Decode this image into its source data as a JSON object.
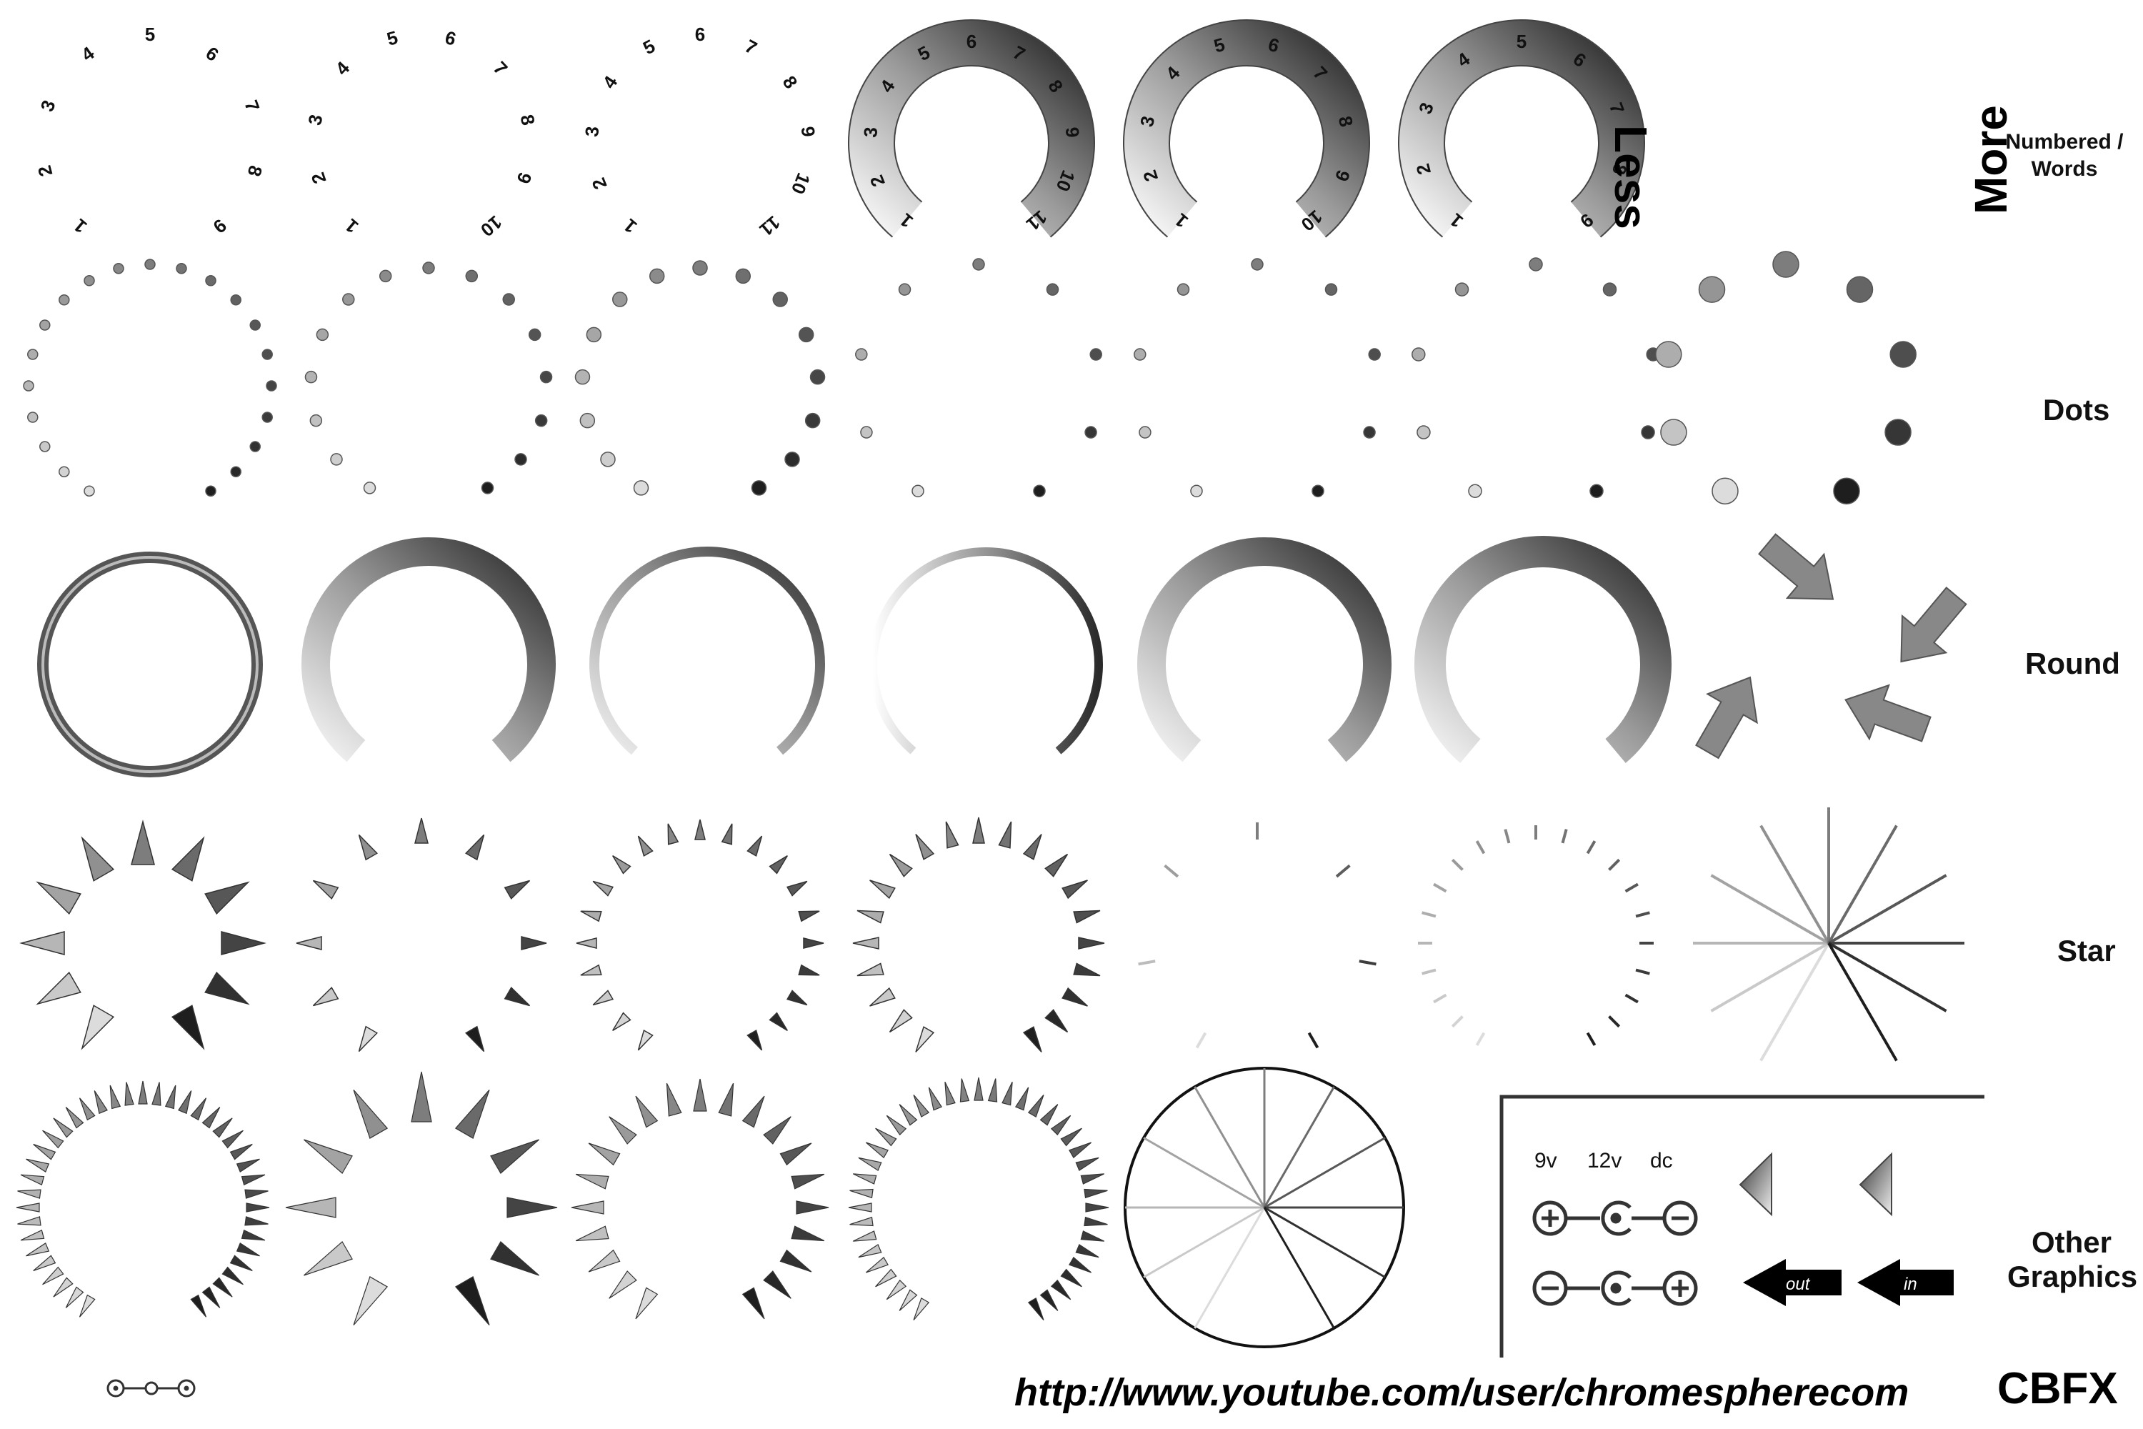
{
  "labels": {
    "numbered": "Numbered / Words",
    "dots": "Dots",
    "round": "Round",
    "star": "Star",
    "other": "Other Graphics"
  },
  "annotations": {
    "less": "Less",
    "more": "More"
  },
  "other_graphics": {
    "voltages": [
      "9v",
      "12v",
      "dc"
    ],
    "arrow_out": "out",
    "arrow_in": "in"
  },
  "footer": {
    "url": "http://www.youtube.com/user/chromespherecom",
    "brand": "CBFX"
  },
  "scales": {
    "row1": [
      [
        "1",
        "2",
        "3",
        "4",
        "5",
        "6",
        "7",
        "8",
        "9"
      ],
      [
        "1",
        "2",
        "3",
        "4",
        "5",
        "6",
        "7",
        "8",
        "9",
        "10"
      ],
      [
        "1",
        "2",
        "3",
        "4",
        "5",
        "6",
        "7",
        "8",
        "9",
        "10",
        "11"
      ],
      [
        "1",
        "2",
        "3",
        "4",
        "5",
        "6",
        "7",
        "8",
        "9",
        "10",
        "11"
      ],
      [
        "1",
        "2",
        "3",
        "4",
        "5",
        "6",
        "7",
        "8",
        "9",
        "10"
      ],
      [
        "1",
        "2",
        "3",
        "4",
        "5",
        "6",
        "7",
        "8",
        "9"
      ]
    ]
  },
  "colors": {
    "ink": "#1a1a1a",
    "mid": "#777777",
    "light": "#cccccc"
  }
}
